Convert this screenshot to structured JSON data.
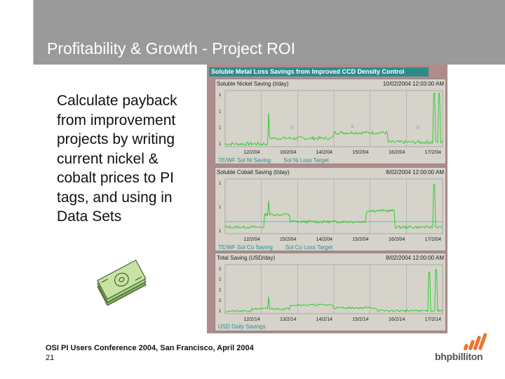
{
  "slide": {
    "title": "Profitability & Growth - Project ROI",
    "bullet": "Calculate payback from improvement projects by writing current nickel & cobalt prices to PI tags, and using in Data Sets",
    "footer_line1": "OSI PI Users Conference 2004, San Francisco, April 2004",
    "page_number": "21",
    "logo_text": "bhpbilliton",
    "colors": {
      "header": "#9a9a9a",
      "trend": "#22cc22",
      "target": "#33bbbb",
      "display_bg": "#b08b8b"
    }
  },
  "pi_display": {
    "title": "Soluble Metal Loss Savings from Improved CCD Density Control",
    "panels": [
      {
        "name": "Soluble Nickel Saving (t/day)",
        "timestamp": "10/02/2004 12:03:00 AM",
        "x_ticks": [
          "12/2/04",
          "10/2/04",
          "14/2/04",
          "15/2/04",
          "16/2/04",
          "17/2/04"
        ],
        "legend": [
          "TE/WF Sol Ni Saving",
          "Sol Ni Loss Target"
        ],
        "y_tick_labels": [
          "1",
          "1",
          "1",
          "1"
        ],
        "target_marker": "o"
      },
      {
        "name": "Soluble Cobalt Saving (t/day)",
        "timestamp": "8/02/2004 12:00:00 AM",
        "x_ticks": [
          "12/2/04",
          "15/2/04",
          "14/2/04",
          "15/2/04",
          "16/2/04",
          "17/2/04"
        ],
        "legend": [
          "TE/WF Sol Co Saving",
          "Sol Co Loss Target"
        ],
        "y_tick_labels": [
          "1",
          "1",
          "1"
        ]
      },
      {
        "name": "Total Saving (USD/day)",
        "timestamp": "8/02/2004 12:00:00 AM",
        "x_ticks": [
          "12/2/14",
          "13/2/14",
          "14/2/14",
          "15/2/14",
          "16/2/14",
          "17/2/14"
        ],
        "legend": [
          "USD Daily Savings"
        ],
        "y_tick_labels": [
          "2",
          "2",
          "2",
          "2",
          "1"
        ]
      }
    ]
  }
}
